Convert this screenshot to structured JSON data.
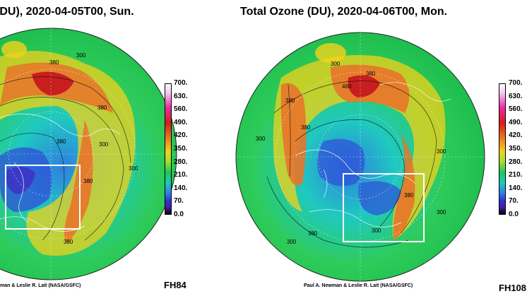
{
  "left_panel": {
    "title": "(DU), 2020-04-05T00, Sun.",
    "credit": "man & Leslie R. Lait (NASA/GSFC)",
    "forecast_label": "FH84",
    "contour_labels": [
      "300",
      "380",
      "380",
      "380",
      "380",
      "300",
      "380",
      "300"
    ],
    "colorbar_ticks": [
      "700.",
      "630.",
      "560.",
      "490.",
      "420.",
      "350.",
      "280.",
      "210.",
      "140.",
      "70.",
      "0.0"
    ]
  },
  "right_panel": {
    "title": "Total Ozone (DU), 2020-04-06T00, Mon.",
    "credit": "Paul A. Newman & Leslie R. Lait (NASA/GSFC)",
    "forecast_label": "FH108",
    "contour_labels": [
      "300",
      "380",
      "460",
      "380",
      "300",
      "380",
      "300",
      "380",
      "380",
      "300",
      "300",
      "300"
    ],
    "colorbar_ticks": [
      "700.",
      "630.",
      "560.",
      "490.",
      "420.",
      "350.",
      "280.",
      "210.",
      "140.",
      "70.",
      "0.0"
    ]
  },
  "colors": {
    "low": "#2f4fd8",
    "mid_low": "#1fc9c0",
    "mid": "#2ecb5a",
    "mid_high": "#f3d21a",
    "high": "#e8742a",
    "max": "#c81e1e"
  }
}
